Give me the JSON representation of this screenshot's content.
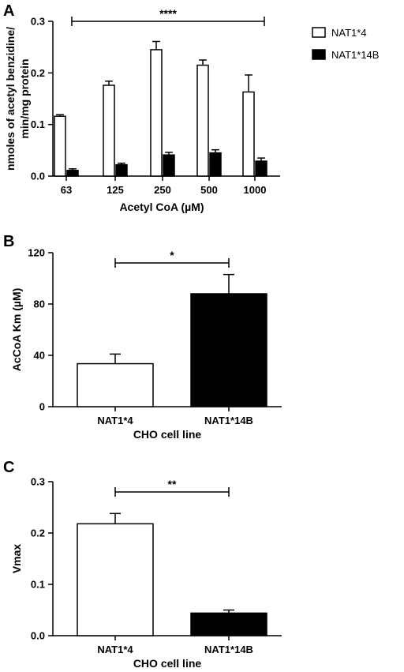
{
  "chart_data": [
    {
      "panel": "A",
      "type": "bar",
      "categories": [
        "63",
        "125",
        "250",
        "500",
        "1000"
      ],
      "xlabel": "Acetyl CoA (µM)",
      "ylabel": "nmoles of acetyl benzidine/ min/mg protein",
      "ylim": [
        0,
        0.3
      ],
      "yticks": [
        "0.0",
        "0.1",
        "0.2",
        "0.3"
      ],
      "series": [
        {
          "name": "NAT1*4",
          "fill": "#ffffff",
          "values": [
            0.116,
            0.176,
            0.245,
            0.215,
            0.163
          ],
          "errors": [
            0.003,
            0.008,
            0.016,
            0.01,
            0.033
          ]
        },
        {
          "name": "NAT1*14B",
          "fill": "#000000",
          "values": [
            0.011,
            0.022,
            0.041,
            0.045,
            0.029
          ],
          "errors": [
            0.003,
            0.003,
            0.005,
            0.006,
            0.006
          ]
        }
      ],
      "significance": {
        "label": "****",
        "from": 0,
        "to": 4
      },
      "legend": "right"
    },
    {
      "panel": "B",
      "type": "bar",
      "categories": [
        "NAT1*4",
        "NAT1*14B"
      ],
      "xlabel": "CHO cell line",
      "ylabel": "AcCoA Km (µM)",
      "ylim": [
        0,
        120
      ],
      "yticks": [
        "0",
        "40",
        "80",
        "120"
      ],
      "series": [
        {
          "values": [
            33.5,
            88
          ],
          "errors": [
            7.5,
            15
          ],
          "fills": [
            "#ffffff",
            "#000000"
          ]
        }
      ],
      "significance": {
        "label": "*",
        "from": 0,
        "to": 1
      }
    },
    {
      "panel": "C",
      "type": "bar",
      "categories": [
        "NAT1*4",
        "NAT1*14B"
      ],
      "xlabel": "CHO cell line",
      "ylabel": "Vmax",
      "ylim": [
        0,
        0.3
      ],
      "yticks": [
        "0.0",
        "0.1",
        "0.2",
        "0.3"
      ],
      "series": [
        {
          "values": [
            0.218,
            0.044
          ],
          "errors": [
            0.02,
            0.006
          ],
          "fills": [
            "#ffffff",
            "#000000"
          ]
        }
      ],
      "significance": {
        "label": "**",
        "from": 0,
        "to": 1
      }
    }
  ]
}
